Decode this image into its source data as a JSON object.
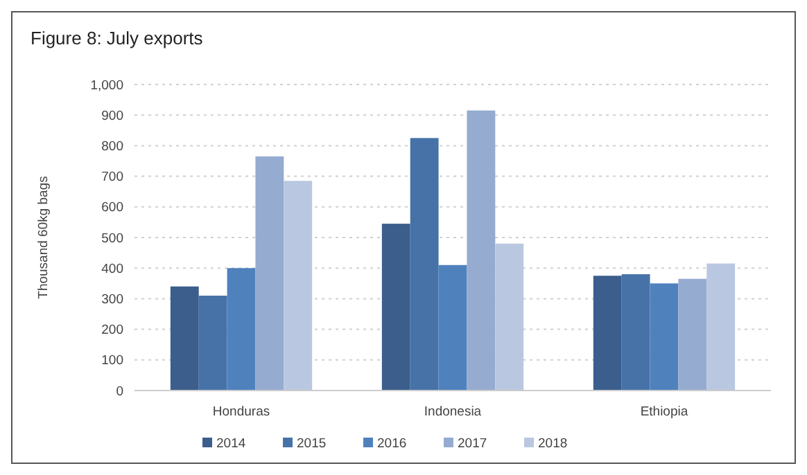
{
  "chart_data": {
    "type": "bar",
    "title": "Figure 8: July exports",
    "ylabel": "Thousand 60kg bags",
    "categories": [
      "Honduras",
      "Indonesia",
      "Ethiopia"
    ],
    "series": [
      {
        "name": "2014",
        "color": "#3b5e8c",
        "values": [
          340,
          545,
          375
        ]
      },
      {
        "name": "2015",
        "color": "#4672a8",
        "values": [
          310,
          825,
          380
        ]
      },
      {
        "name": "2016",
        "color": "#4f81bd",
        "values": [
          400,
          410,
          350
        ]
      },
      {
        "name": "2017",
        "color": "#95abd0",
        "values": [
          765,
          915,
          365
        ]
      },
      {
        "name": "2018",
        "color": "#b9c8e0",
        "values": [
          685,
          480,
          415
        ]
      }
    ],
    "ylim": [
      0,
      1000
    ],
    "yticks": [
      0,
      {
        "value": 100,
        "label": "100"
      },
      200,
      300,
      400,
      500,
      600,
      700,
      800,
      900,
      {
        "value": 1000,
        "label": "1,000"
      }
    ],
    "grid": "y",
    "legend": "bottom"
  }
}
